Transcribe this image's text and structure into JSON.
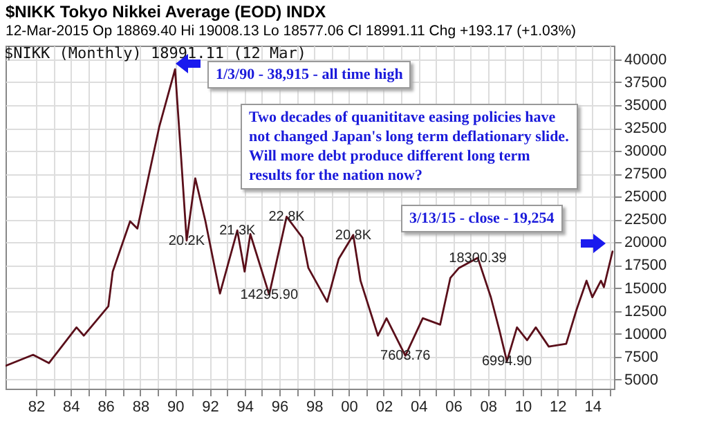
{
  "chart_data": {
    "type": "line",
    "title": "$NIKK Tokyo Nikkei Average (EOD) INDX",
    "subtitle": "12-Mar-2015  Op 18869.40  Hi 19008.13  Lo 18577.06  Cl 18991.11  Chg +193.17 (+1.03%)",
    "x": [
      "1980-04",
      "1981-11",
      "1982-10",
      "1984-05",
      "1984-10",
      "1986-03",
      "1986-06",
      "1987-06",
      "1987-11",
      "1989-02",
      "1990-01",
      "1990-05",
      "1990-09",
      "1991-03",
      "1991-10",
      "1992-08",
      "1993-08",
      "1994-01",
      "1994-05",
      "1995-06",
      "1996-06",
      "1997-05",
      "1997-09",
      "1998-10",
      "1999-06",
      "2000-04",
      "2000-09",
      "2001-09",
      "2002-03",
      "2003-04",
      "2004-04",
      "2005-04",
      "2005-11",
      "2006-05",
      "2007-06",
      "2008-03",
      "2008-09",
      "2009-02",
      "2009-09",
      "2010-04",
      "2010-10",
      "2011-07",
      "2012-07",
      "2013-02",
      "2013-09",
      "2014-01",
      "2014-07",
      "2014-09",
      "2015-03"
    ],
    "series": [
      {
        "color": "#5a0f1a",
        "values": [
          6500,
          7700,
          6800,
          10700,
          9800,
          13000,
          16800,
          22300,
          21500,
          32600,
          38915,
          29800,
          20200,
          27000,
          22300,
          14400,
          21300,
          16800,
          20900,
          14295.9,
          22800,
          20500,
          17200,
          13500,
          18200,
          20800,
          15800,
          9800,
          11700,
          7603.76,
          11700,
          11000,
          16100,
          17200,
          18300.39,
          14000,
          10300,
          6994.9,
          10700,
          9300,
          10700,
          8600,
          8900,
          12600,
          15800,
          14000,
          15800,
          15100,
          18991.11
        ]
      }
    ],
    "xlim": [
      "1980-04",
      "2015-04"
    ],
    "xticks": [
      {
        "value": "1982",
        "label": "82"
      },
      {
        "value": "1983",
        "label": null
      },
      {
        "value": "1984",
        "label": "84"
      },
      {
        "value": "1985",
        "label": null
      },
      {
        "value": "1986",
        "label": "86"
      },
      {
        "value": "1987",
        "label": null
      },
      {
        "value": "1988",
        "label": "88"
      },
      {
        "value": "1989",
        "label": null
      },
      {
        "value": "1990",
        "label": "90"
      },
      {
        "value": "1991",
        "label": null
      },
      {
        "value": "1992",
        "label": "92"
      },
      {
        "value": "1993",
        "label": null
      },
      {
        "value": "1994",
        "label": "94"
      },
      {
        "value": "1995",
        "label": null
      },
      {
        "value": "1996",
        "label": "96"
      },
      {
        "value": "1997",
        "label": null
      },
      {
        "value": "1998",
        "label": "98"
      },
      {
        "value": "1999",
        "label": null
      },
      {
        "value": "2000",
        "label": "00"
      },
      {
        "value": "2001",
        "label": null
      },
      {
        "value": "2002",
        "label": "02"
      },
      {
        "value": "2003",
        "label": null
      },
      {
        "value": "2004",
        "label": "04"
      },
      {
        "value": "2005",
        "label": null
      },
      {
        "value": "2006",
        "label": "06"
      },
      {
        "value": "2007",
        "label": null
      },
      {
        "value": "2008",
        "label": "08"
      },
      {
        "value": "2009",
        "label": null
      },
      {
        "value": "2010",
        "label": "10"
      },
      {
        "value": "2011",
        "label": null
      },
      {
        "value": "2012",
        "label": "12"
      },
      {
        "value": "2013",
        "label": null
      },
      {
        "value": "2014",
        "label": "14"
      },
      {
        "value": "2015",
        "label": null
      }
    ],
    "ylim": [
      4000,
      41500
    ],
    "yticks": [
      5000,
      7500,
      10000,
      12500,
      15000,
      17500,
      20000,
      22500,
      25000,
      27500,
      30000,
      32500,
      35000,
      37500,
      40000
    ],
    "grid": true,
    "annotations": [
      "$NIKK (Monthly) 18991.11 (12 Mar)",
      "1/3/90 - 38,915 - all time high",
      "Two decades of quanititave easing policies have not changed Japan's long term deflationary slide. Will more debt produce different long term results for the nation now?",
      "3/13/15 - close - 19,254",
      {
        "text": "20.2K",
        "x": "1990-09",
        "y": 20200
      },
      {
        "text": "21.3K",
        "x": "1993-08",
        "y": 21300
      },
      {
        "text": "14295.90",
        "x": "1995-06",
        "y": 14295.9
      },
      {
        "text": "22.8K",
        "x": "1996-06",
        "y": 22800
      },
      {
        "text": "20.8K",
        "x": "2000-04",
        "y": 20800
      },
      {
        "text": "7603.76",
        "x": "2003-04",
        "y": 7603.76
      },
      {
        "text": "18300.39",
        "x": "2007-06",
        "y": 18300.39
      },
      {
        "text": "6994.90",
        "x": "2009-02",
        "y": 6994.9
      }
    ]
  }
}
